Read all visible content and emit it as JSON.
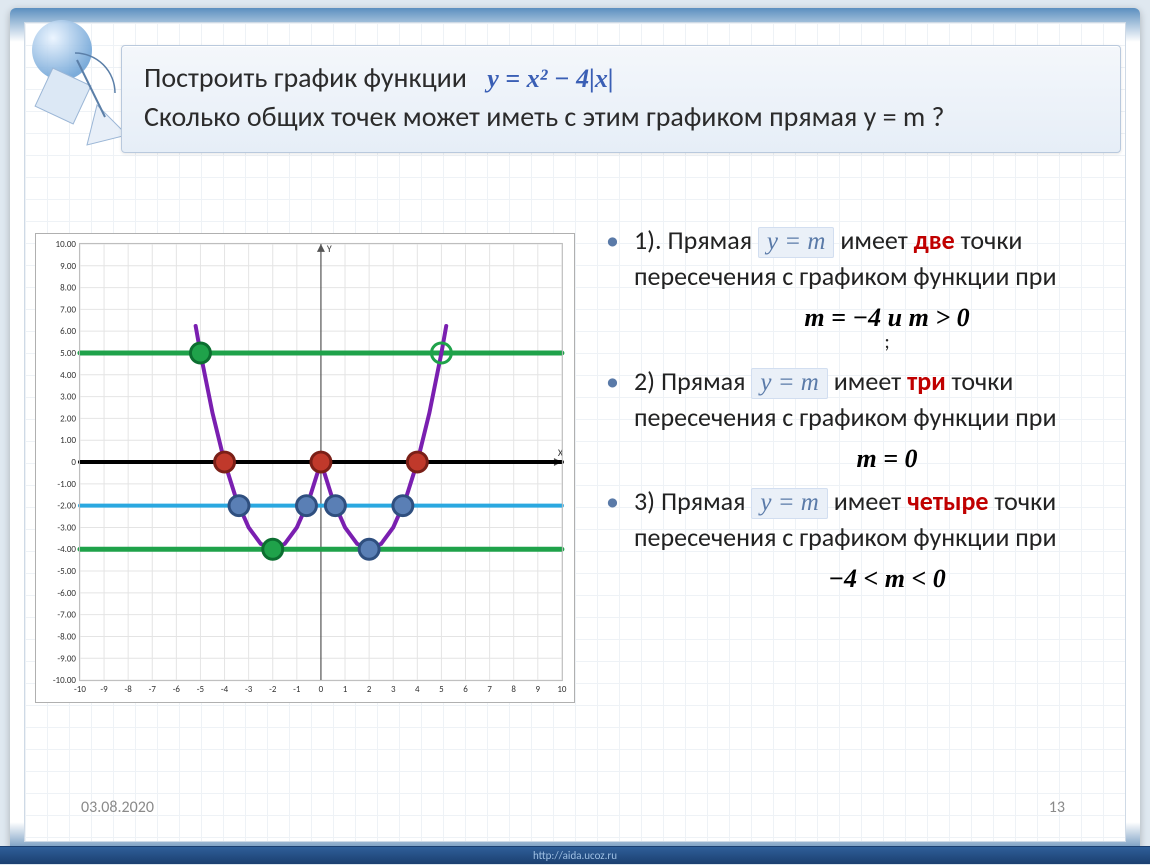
{
  "header": {
    "line1_prefix": "Построить график функции",
    "equation": "y = x² − 4|x|",
    "body": "Сколько общих точек может иметь с этим графиком прямая y =  m ?"
  },
  "chart": {
    "type": "line+scatter",
    "xlim": [
      -10,
      10
    ],
    "ylim": [
      -10,
      10
    ],
    "xtick_step": 1,
    "ytick_step": 1,
    "ytick_labels": [
      "10.00",
      "9.00",
      "8.00",
      "7.00",
      "6.00",
      "5.00",
      "4.00",
      "3.00",
      "2.00",
      "1.00",
      "0",
      "-1.00",
      "-2.00",
      "-3.00",
      "-4.00",
      "-5.00",
      "-6.00",
      "-7.00",
      "-8.00",
      "-9.00",
      "-10.00"
    ],
    "background_color": "#ffffff",
    "grid_color": "#e4e4e4",
    "axis_color": "#555555",
    "axis_label_fontsize": 9,
    "axis_labels": {
      "x": "X",
      "y": "Y"
    },
    "curve": {
      "color": "#7a1fb0",
      "width": 4,
      "points_neg": [
        [
          -5.2,
          6.24
        ],
        [
          -5,
          5
        ],
        [
          -4.5,
          2.25
        ],
        [
          -4,
          0
        ],
        [
          -3.5,
          -1.75
        ],
        [
          -3,
          -3
        ],
        [
          -2.5,
          -3.75
        ],
        [
          -2,
          -4
        ],
        [
          -1.5,
          -3.75
        ],
        [
          -1,
          -3
        ],
        [
          -0.5,
          -1.75
        ],
        [
          0,
          0
        ]
      ],
      "points_pos": [
        [
          0,
          0
        ],
        [
          0.5,
          -1.75
        ],
        [
          1,
          -3
        ],
        [
          1.5,
          -3.75
        ],
        [
          2,
          -4
        ],
        [
          2.5,
          -3.75
        ],
        [
          3,
          -3
        ],
        [
          3.5,
          -1.75
        ],
        [
          4,
          0
        ],
        [
          4.5,
          2.25
        ],
        [
          5,
          5
        ],
        [
          5.2,
          6.24
        ]
      ]
    },
    "hlines": [
      {
        "y": 5,
        "color": "#1fa24a",
        "width": 5
      },
      {
        "y": 0,
        "color": "#000000",
        "width": 4
      },
      {
        "y": -2,
        "color": "#2aa8e0",
        "width": 4
      },
      {
        "y": -4,
        "color": "#1fa24a",
        "width": 5
      }
    ],
    "markers": [
      {
        "x": -5,
        "y": 5,
        "fill": "#1fa24a",
        "stroke": "#0c6e30",
        "open": false
      },
      {
        "x": 5,
        "y": 5,
        "fill": "none",
        "stroke": "#1fa24a",
        "open": true
      },
      {
        "x": -4,
        "y": 0,
        "fill": "#c0392b",
        "stroke": "#7a1f17",
        "open": false
      },
      {
        "x": 0,
        "y": 0,
        "fill": "#c0392b",
        "stroke": "#7a1f17",
        "open": false
      },
      {
        "x": 4,
        "y": 0,
        "fill": "#c0392b",
        "stroke": "#7a1f17",
        "open": false
      },
      {
        "x": -3.4,
        "y": -2,
        "fill": "#5a7fb5",
        "stroke": "#2f4f7f",
        "open": false
      },
      {
        "x": -0.6,
        "y": -2,
        "fill": "#5a7fb5",
        "stroke": "#2f4f7f",
        "open": false
      },
      {
        "x": 0.6,
        "y": -2,
        "fill": "#5a7fb5",
        "stroke": "#2f4f7f",
        "open": false
      },
      {
        "x": 3.4,
        "y": -2,
        "fill": "#5a7fb5",
        "stroke": "#2f4f7f",
        "open": false
      },
      {
        "x": -2,
        "y": -4,
        "fill": "#1fa24a",
        "stroke": "#0c6e30",
        "open": false
      },
      {
        "x": 2,
        "y": -4,
        "fill": "#5a7fb5",
        "stroke": "#2f4f7f",
        "open": false
      }
    ],
    "marker_radius": 10
  },
  "answers": {
    "item1": {
      "lead": "1). Прямая  ",
      "ym": "y = m",
      "mid": "  имеет ",
      "count": "две",
      "tail": " точки пересечения с графиком  функции при",
      "cond": "m = −4 и  m > 0"
    },
    "item2": {
      "lead": "2)  Прямая  ",
      "ym": "y = m",
      "mid": "  имеет ",
      "count": "три",
      "tail": " точки пересечения с графиком  функции при",
      "cond": "m = 0"
    },
    "item3": {
      "lead": " 3) Прямая    ",
      "ym": "y = m",
      "mid": "   имеет ",
      "count": "четыре",
      "tail": " точки пересечения с графиком  функции при",
      "cond": "−4 < m < 0"
    }
  },
  "semi": ";",
  "footer": {
    "date": "03.08.2020",
    "page": "13",
    "watermark": "http://aida.ucoz.ru"
  }
}
